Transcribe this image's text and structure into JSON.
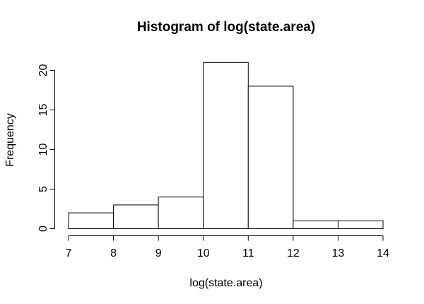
{
  "figure": {
    "background": "#ffffff",
    "foreground": "#000000"
  },
  "chart_data": {
    "type": "bar",
    "subtype": "histogram",
    "title": "Histogram of log(state.area)",
    "xlabel": "log(state.area)",
    "ylabel": "Frequency",
    "bin_edges": [
      7,
      8,
      9,
      10,
      11,
      12,
      13,
      14
    ],
    "counts": [
      2,
      3,
      4,
      21,
      18,
      1,
      1
    ],
    "x_ticks": [
      7,
      8,
      9,
      10,
      11,
      12,
      13,
      14
    ],
    "y_ticks": [
      0,
      5,
      10,
      15,
      20
    ],
    "xlim": [
      7,
      14
    ],
    "ylim": [
      0,
      21
    ],
    "grid": false,
    "legend": false,
    "bar_fill": "#ffffff",
    "bar_stroke": "#000000",
    "axis_color": "#000000"
  }
}
